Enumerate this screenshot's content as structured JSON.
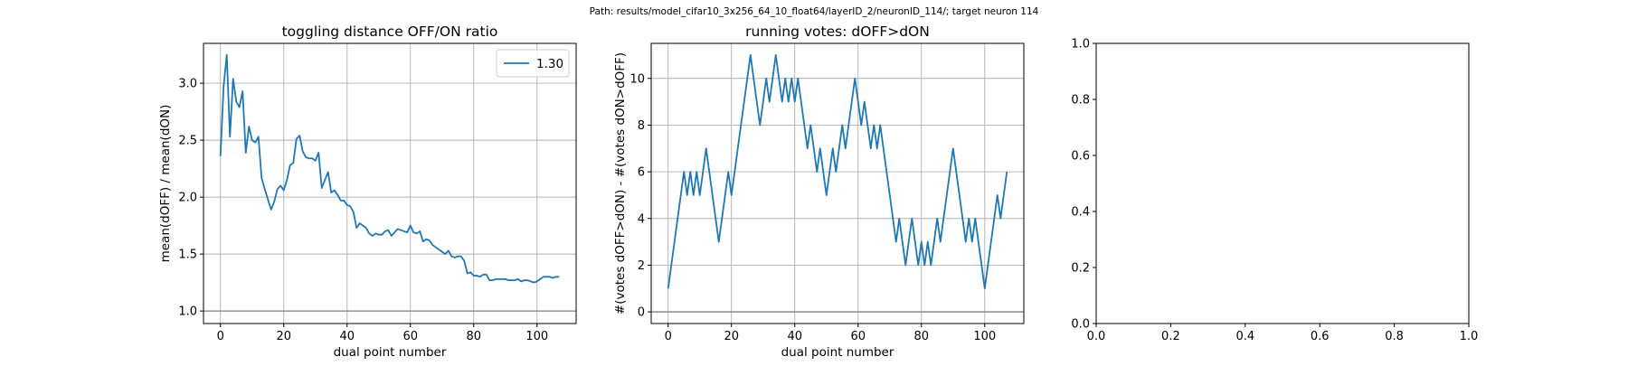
{
  "suptitle": "Path: results/model_cifar10_3x256_64_10_float64/layerID_2/neuronID_114/; target neuron 114",
  "colors": {
    "line": "#1f77b4",
    "grid": "#b0b0b0",
    "refline": "#808080",
    "axes": "#000000"
  },
  "chart_data": [
    {
      "type": "line",
      "title": "toggling distance OFF/ON ratio",
      "xlabel": "dual point number",
      "ylabel": "mean(dOFF) / mean(dON)",
      "xlim": [
        -5.35,
        112.35
      ],
      "ylim": [
        0.89,
        3.35
      ],
      "xticks": [
        0,
        20,
        40,
        60,
        80,
        100
      ],
      "yticks": [
        1.0,
        1.5,
        2.0,
        2.5,
        3.0
      ],
      "ytick_labels": [
        "1.0",
        "1.5",
        "2.0",
        "2.5",
        "3.0"
      ],
      "grid": true,
      "legend": {
        "position": "upper-right",
        "entries": [
          "1.30"
        ]
      },
      "hline": 1.0,
      "series": [
        {
          "name": "1.30",
          "x": [
            0,
            1,
            2,
            3,
            4,
            5,
            6,
            7,
            8,
            9,
            10,
            11,
            12,
            13,
            14,
            15,
            16,
            17,
            18,
            19,
            20,
            21,
            22,
            23,
            24,
            25,
            26,
            27,
            28,
            29,
            30,
            31,
            32,
            33,
            34,
            35,
            36,
            37,
            38,
            39,
            40,
            41,
            42,
            43,
            44,
            45,
            46,
            47,
            48,
            49,
            50,
            51,
            52,
            53,
            54,
            55,
            56,
            57,
            58,
            59,
            60,
            61,
            62,
            63,
            64,
            65,
            66,
            67,
            68,
            69,
            70,
            71,
            72,
            73,
            74,
            75,
            76,
            77,
            78,
            79,
            80,
            81,
            82,
            83,
            84,
            85,
            86,
            87,
            88,
            89,
            90,
            91,
            92,
            93,
            94,
            95,
            96,
            97,
            98,
            99,
            100,
            101,
            102,
            103,
            104,
            105,
            106,
            107
          ],
          "y": [
            2.36,
            2.97,
            3.25,
            2.53,
            3.04,
            2.84,
            2.79,
            2.93,
            2.39,
            2.62,
            2.5,
            2.48,
            2.53,
            2.17,
            2.07,
            1.98,
            1.89,
            1.96,
            2.07,
            2.1,
            2.06,
            2.15,
            2.28,
            2.3,
            2.51,
            2.54,
            2.4,
            2.35,
            2.34,
            2.34,
            2.32,
            2.39,
            2.08,
            2.15,
            2.22,
            2.04,
            2.06,
            2.02,
            1.97,
            1.97,
            1.93,
            1.92,
            1.87,
            1.73,
            1.77,
            1.75,
            1.73,
            1.68,
            1.66,
            1.68,
            1.67,
            1.67,
            1.7,
            1.71,
            1.66,
            1.69,
            1.72,
            1.71,
            1.7,
            1.69,
            1.75,
            1.69,
            1.68,
            1.7,
            1.61,
            1.63,
            1.62,
            1.58,
            1.56,
            1.54,
            1.52,
            1.5,
            1.53,
            1.48,
            1.47,
            1.48,
            1.48,
            1.44,
            1.33,
            1.34,
            1.31,
            1.31,
            1.3,
            1.32,
            1.32,
            1.27,
            1.27,
            1.28,
            1.28,
            1.28,
            1.28,
            1.27,
            1.27,
            1.27,
            1.28,
            1.26,
            1.27,
            1.27,
            1.26,
            1.25,
            1.26,
            1.28,
            1.3,
            1.3,
            1.3,
            1.29,
            1.3,
            1.3
          ]
        }
      ]
    },
    {
      "type": "line",
      "title": "running votes: dOFF>dON",
      "xlabel": "dual point number",
      "ylabel": "#(votes dOFF>dON) - #(votes dON>dOFF)",
      "xlim": [
        -5.35,
        112.35
      ],
      "ylim": [
        -0.5,
        11.5
      ],
      "xticks": [
        0,
        20,
        40,
        60,
        80,
        100
      ],
      "yticks": [
        0,
        2,
        4,
        6,
        8,
        10
      ],
      "ytick_labels": [
        "0",
        "2",
        "4",
        "6",
        "8",
        "10"
      ],
      "grid": true,
      "hline": 0,
      "series": [
        {
          "x": [
            0,
            1,
            2,
            3,
            4,
            5,
            6,
            7,
            8,
            9,
            10,
            11,
            12,
            13,
            14,
            15,
            16,
            17,
            18,
            19,
            20,
            21,
            22,
            23,
            24,
            25,
            26,
            27,
            28,
            29,
            30,
            31,
            32,
            33,
            34,
            35,
            36,
            37,
            38,
            39,
            40,
            41,
            42,
            43,
            44,
            45,
            46,
            47,
            48,
            49,
            50,
            51,
            52,
            53,
            54,
            55,
            56,
            57,
            58,
            59,
            60,
            61,
            62,
            63,
            64,
            65,
            66,
            67,
            68,
            69,
            70,
            71,
            72,
            73,
            74,
            75,
            76,
            77,
            78,
            79,
            80,
            81,
            82,
            83,
            84,
            85,
            86,
            87,
            88,
            89,
            90,
            91,
            92,
            93,
            94,
            95,
            96,
            97,
            98,
            99,
            100,
            101,
            102,
            103,
            104,
            105,
            106,
            107
          ],
          "y": [
            1,
            2,
            3,
            4,
            5,
            6,
            5,
            6,
            5,
            6,
            5,
            6,
            7,
            6,
            5,
            4,
            3,
            4,
            5,
            6,
            5,
            6,
            7,
            8,
            9,
            10,
            11,
            10,
            9,
            8,
            9,
            10,
            9,
            10,
            11,
            10,
            9,
            10,
            9,
            10,
            9,
            10,
            9,
            8,
            7,
            8,
            7,
            6,
            7,
            6,
            5,
            6,
            7,
            6,
            7,
            8,
            7,
            8,
            9,
            10,
            9,
            8,
            9,
            8,
            7,
            8,
            7,
            8,
            7,
            6,
            5,
            4,
            3,
            4,
            3,
            2,
            3,
            4,
            3,
            2,
            3,
            2,
            3,
            2,
            3,
            4,
            3,
            4,
            5,
            6,
            7,
            6,
            5,
            4,
            3,
            4,
            3,
            4,
            3,
            2,
            1,
            2,
            3,
            4,
            5,
            4,
            5,
            6
          ]
        }
      ]
    },
    {
      "type": "line",
      "title": "",
      "xlim": [
        0,
        1
      ],
      "ylim": [
        0,
        1
      ],
      "xticks": [
        0,
        0.2,
        0.4,
        0.6,
        0.8,
        1.0
      ],
      "yticks": [
        0,
        0.2,
        0.4,
        0.6,
        0.8,
        1.0
      ],
      "xtick_labels": [
        "0.0",
        "0.2",
        "0.4",
        "0.6",
        "0.8",
        "1.0"
      ],
      "ytick_labels": [
        "0.0",
        "0.2",
        "0.4",
        "0.6",
        "0.8",
        "1.0"
      ],
      "grid": false,
      "series": []
    }
  ]
}
